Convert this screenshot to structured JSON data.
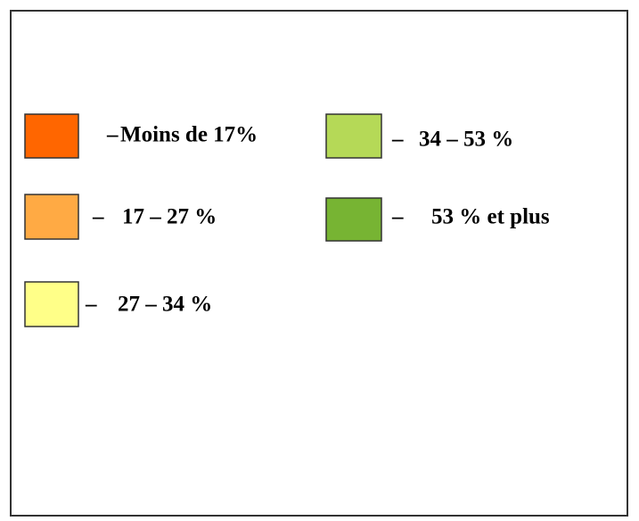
{
  "legend": {
    "items": [
      {
        "dash": "–",
        "label": "Moins de 17%",
        "color": "#ff6600"
      },
      {
        "dash": "–",
        "label": "17 – 27 %",
        "color": "#ffaa44"
      },
      {
        "dash": "–",
        "label": "27 – 34 %",
        "color": "#ffff88"
      },
      {
        "dash": "–",
        "label": "34 – 53 %",
        "color": "#b5d957"
      },
      {
        "dash": "–",
        "label": "53 % et plus",
        "color": "#77b433"
      }
    ]
  }
}
